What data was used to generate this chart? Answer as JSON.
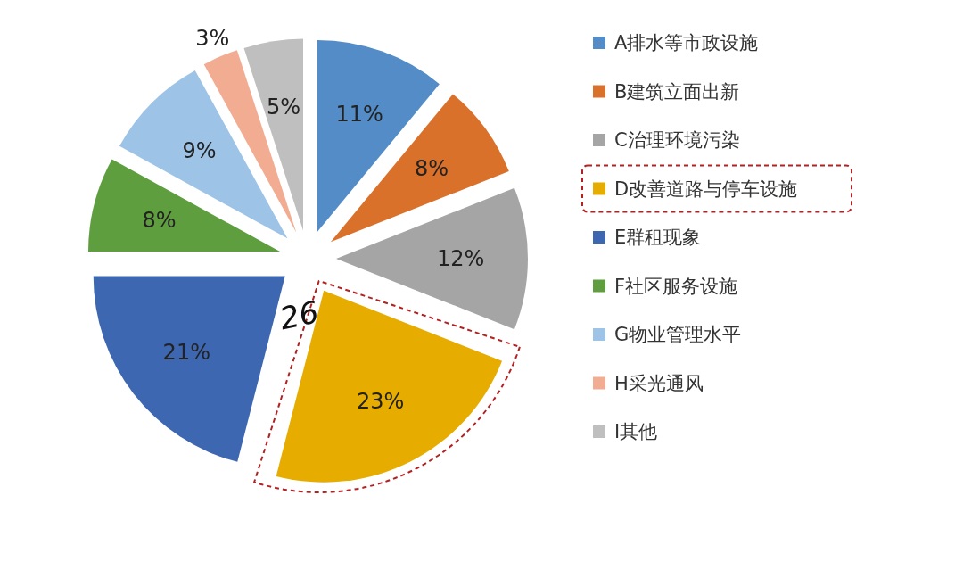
{
  "chart_data": {
    "type": "pie",
    "categories": [
      "A排水等市政设施",
      "B建筑立面出新",
      "C治理环境污染",
      "D改善道路与停车设施",
      "E群租现象",
      "F社区服务设施",
      "G物业管理水平",
      "H采光通风",
      "I其他"
    ],
    "values": [
      11,
      8,
      12,
      23,
      21,
      8,
      9,
      3,
      5
    ],
    "value_labels": [
      "11%",
      "8%",
      "12%",
      "23%",
      "21%",
      "8%",
      "9%",
      "3%",
      "5%"
    ],
    "colors": [
      "#538cc6",
      "#d9712b",
      "#a5a5a5",
      "#e6ac00",
      "#3d67b1",
      "#5f9e3f",
      "#9dc3e6",
      "#f2ac92",
      "#bfbfbf"
    ],
    "legend": "right",
    "annotations": [
      "26"
    ]
  }
}
